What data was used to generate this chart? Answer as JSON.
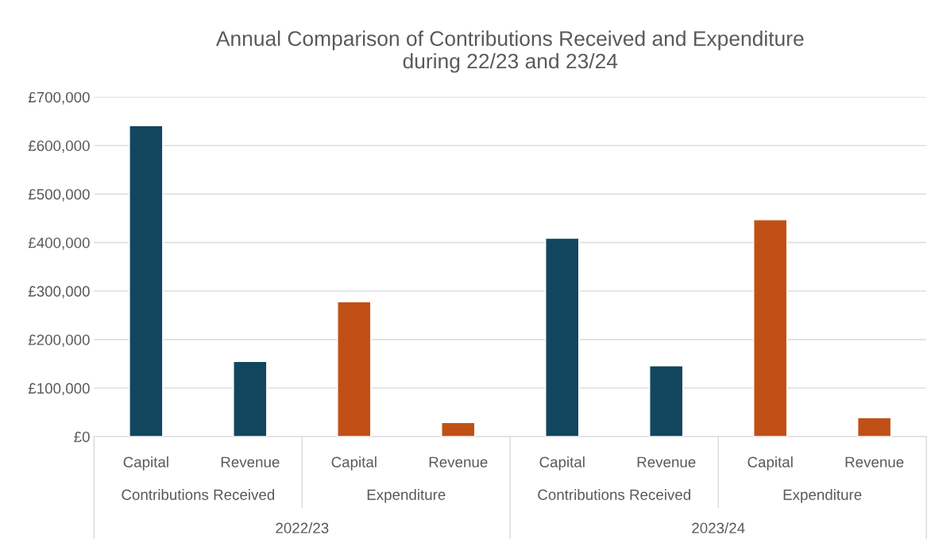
{
  "chart_data": {
    "type": "bar",
    "title": "Annual Comparison of Contributions Received and Expenditure\nduring 22/23 and 23/24",
    "categories": [
      "Capital",
      "Revenue",
      "Capital",
      "Revenue",
      "Capital",
      "Revenue",
      "Capital",
      "Revenue"
    ],
    "values": [
      641000,
      155000,
      278000,
      29000,
      409000,
      146000,
      447000,
      39000
    ],
    "colors": [
      "#12465f",
      "#12465f",
      "#c05016",
      "#c05016",
      "#12465f",
      "#12465f",
      "#c05016",
      "#c05016"
    ],
    "ylim": [
      0,
      700000
    ],
    "yticks": [
      {
        "value": 0,
        "label": "£0"
      },
      {
        "value": 100000,
        "label": "£100,000"
      },
      {
        "value": 200000,
        "label": "£200,000"
      },
      {
        "value": 300000,
        "label": "£300,000"
      },
      {
        "value": 400000,
        "label": "£400,000"
      },
      {
        "value": 500000,
        "label": "£500,000"
      },
      {
        "value": 600000,
        "label": "£600,000"
      },
      {
        "value": 700000,
        "label": "£700,000"
      }
    ],
    "grid": "y",
    "annotations": [
      "Contributions Received",
      "Expenditure",
      "Contributions Received",
      "Expenditure",
      "2022/23",
      "2023/24"
    ]
  }
}
